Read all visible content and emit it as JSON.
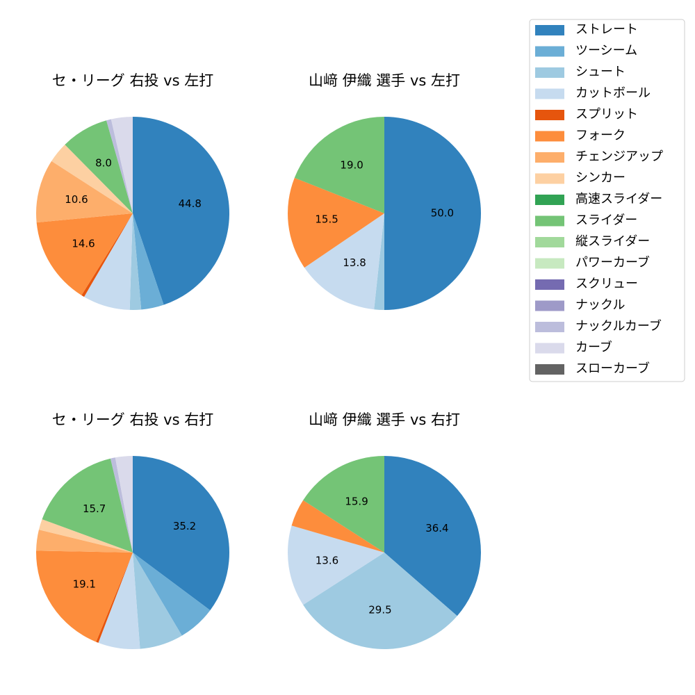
{
  "legend": {
    "categories": [
      "ストレート",
      "ツーシーム",
      "シュート",
      "カットボール",
      "スプリット",
      "フォーク",
      "チェンジアップ",
      "シンカー",
      "高速スライダー",
      "スライダー",
      "縦スライダー",
      "パワーカーブ",
      "スクリュー",
      "ナックル",
      "ナックルカーブ",
      "カーブ",
      "スローカーブ"
    ],
    "colors": [
      "#3182bd",
      "#6baed6",
      "#9ecae1",
      "#c6dbef",
      "#e6550d",
      "#fd8d3c",
      "#fdae6b",
      "#fdd0a2",
      "#31a354",
      "#74c476",
      "#a1d99b",
      "#c7e9c0",
      "#756bb1",
      "#9e9ac8",
      "#bcbddc",
      "#dadaeb",
      "#636363"
    ]
  },
  "chart_data": [
    {
      "type": "pie",
      "title": "セ・リーグ 右投 vs 左打",
      "values": [
        44.8,
        3.8,
        1.9,
        7.9,
        0.5,
        14.6,
        10.6,
        3.5,
        null,
        8.0,
        null,
        null,
        null,
        null,
        0.8,
        3.6,
        null
      ],
      "value_labels": [
        "44.8",
        null,
        null,
        null,
        null,
        "14.6",
        "10.6",
        null,
        null,
        "8.0",
        null,
        null,
        null,
        null,
        null,
        null,
        null
      ]
    },
    {
      "type": "pie",
      "title": "山﨑 伊織 選手 vs 左打",
      "values": [
        50.0,
        null,
        1.7,
        13.8,
        null,
        15.5,
        null,
        null,
        null,
        19.0,
        null,
        null,
        null,
        null,
        null,
        null,
        null
      ],
      "value_labels": [
        "50.0",
        null,
        null,
        "13.8",
        null,
        "15.5",
        null,
        null,
        null,
        "19.0",
        null,
        null,
        null,
        null,
        null,
        null,
        null
      ]
    },
    {
      "type": "pie",
      "title": "セ・リーグ 右投 vs 右打",
      "values": [
        35.2,
        6.3,
        7.3,
        7.0,
        0.4,
        19.1,
        3.5,
        1.8,
        null,
        15.7,
        null,
        null,
        null,
        null,
        0.8,
        2.9,
        null
      ],
      "value_labels": [
        "35.2",
        null,
        null,
        null,
        null,
        "19.1",
        null,
        null,
        null,
        "15.7",
        null,
        null,
        null,
        null,
        null,
        null,
        null
      ]
    },
    {
      "type": "pie",
      "title": "山﨑 伊織 選手 vs 右打",
      "values": [
        36.4,
        null,
        29.5,
        13.6,
        null,
        4.6,
        null,
        null,
        null,
        15.9,
        null,
        null,
        null,
        null,
        null,
        null,
        null
      ],
      "value_labels": [
        "36.4",
        null,
        "29.5",
        "13.6",
        null,
        null,
        null,
        null,
        null,
        "15.9",
        null,
        null,
        null,
        null,
        null,
        null,
        null
      ]
    }
  ]
}
